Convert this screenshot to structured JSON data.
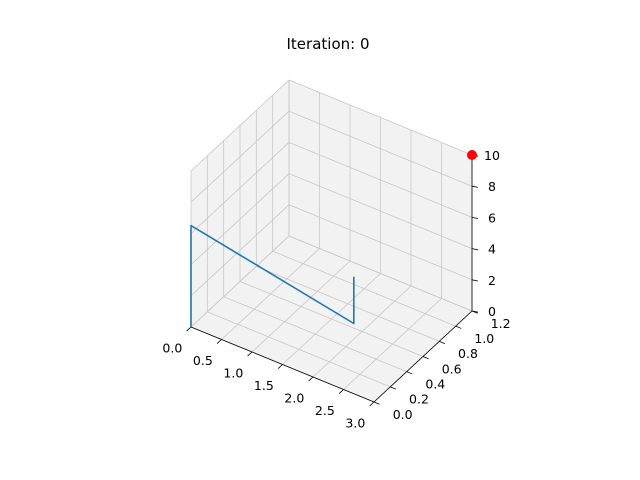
{
  "chart_data": {
    "type": "line3d",
    "title": "Iteration: 0",
    "xlabel": "",
    "ylabel": "",
    "zlabel": "",
    "xlim": [
      0,
      3.0
    ],
    "ylim": [
      0,
      1.2
    ],
    "zlim": [
      0,
      10
    ],
    "x_ticks": [
      "0.0",
      "0.5",
      "1.0",
      "1.5",
      "2.0",
      "2.5",
      "3.0"
    ],
    "y_ticks": [
      "0.0",
      "0.2",
      "0.4",
      "0.6",
      "0.8",
      "1.0",
      "1.2"
    ],
    "z_ticks": [
      "0",
      "2",
      "4",
      "6",
      "8",
      "10"
    ],
    "grid": true,
    "series": [
      {
        "kind": "line",
        "color": "#1f77b4",
        "points": [
          {
            "x": 0.0,
            "y": 0.0,
            "z": 0.0
          },
          {
            "x": 0.0,
            "y": 0.0,
            "z": 6.5
          },
          {
            "x": 2.0,
            "y": 0.5,
            "z": 1.0
          },
          {
            "x": 2.0,
            "y": 0.5,
            "z": 4.0
          }
        ]
      },
      {
        "kind": "marker",
        "color": "#ff0000",
        "points": [
          {
            "x": 3.0,
            "y": 1.2,
            "z": 10.0
          }
        ]
      }
    ],
    "pane_color": "#f2f2f2",
    "grid_color": "#c8c8c8"
  }
}
